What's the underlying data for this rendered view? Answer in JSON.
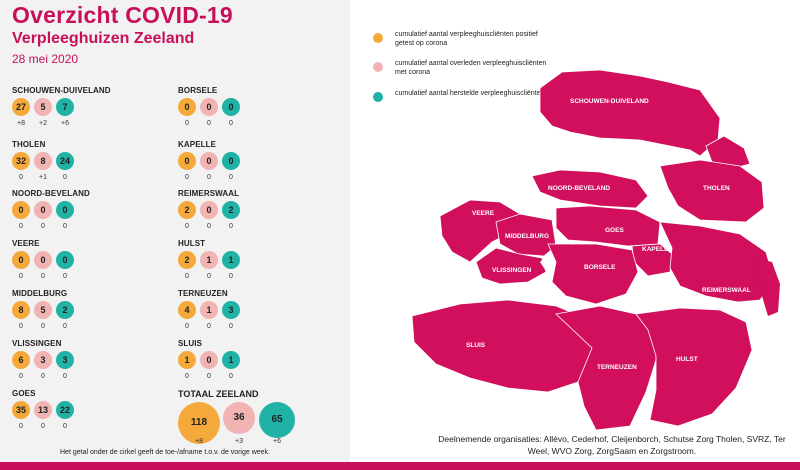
{
  "header": {
    "title": "Overzicht COVID-19",
    "subtitle": "Verpleeghuizen Zeeland",
    "date": "28 mei 2020"
  },
  "colors": {
    "accent": "#c8105a",
    "positive": "#f4a93a",
    "deceased": "#f2b3b3",
    "recovered": "#1fb2a5"
  },
  "regions": [
    {
      "name": "SCHOUWEN-DUIVELAND",
      "values": [
        "27",
        "5",
        "7"
      ],
      "deltas": [
        "+8",
        "+2",
        "+6"
      ]
    },
    {
      "name": "THOLEN",
      "values": [
        "32",
        "8",
        "24"
      ],
      "deltas": [
        "0",
        "+1",
        "0"
      ]
    },
    {
      "name": "NOORD-BEVELAND",
      "values": [
        "0",
        "0",
        "0"
      ],
      "deltas": [
        "0",
        "0",
        "0"
      ]
    },
    {
      "name": "VEERE",
      "values": [
        "0",
        "0",
        "0"
      ],
      "deltas": [
        "0",
        "0",
        "0"
      ]
    },
    {
      "name": "MIDDELBURG",
      "values": [
        "8",
        "5",
        "2"
      ],
      "deltas": [
        "0",
        "0",
        "0"
      ]
    },
    {
      "name": "VLISSINGEN",
      "values": [
        "6",
        "3",
        "3"
      ],
      "deltas": [
        "0",
        "0",
        "0"
      ]
    },
    {
      "name": "GOES",
      "values": [
        "35",
        "13",
        "22"
      ],
      "deltas": [
        "0",
        "0",
        "0"
      ]
    },
    {
      "name": "BORSELE",
      "values": [
        "0",
        "0",
        "0"
      ],
      "deltas": [
        "0",
        "0",
        "0"
      ]
    },
    {
      "name": "KAPELLE",
      "values": [
        "0",
        "0",
        "0"
      ],
      "deltas": [
        "0",
        "0",
        "0"
      ]
    },
    {
      "name": "REIMERSWAAL",
      "values": [
        "2",
        "0",
        "2"
      ],
      "deltas": [
        "0",
        "0",
        "0"
      ]
    },
    {
      "name": "HULST",
      "values": [
        "2",
        "1",
        "1"
      ],
      "deltas": [
        "0",
        "0",
        "0"
      ]
    },
    {
      "name": "TERNEUZEN",
      "values": [
        "4",
        "1",
        "3"
      ],
      "deltas": [
        "0",
        "0",
        "0"
      ]
    },
    {
      "name": "SLUIS",
      "values": [
        "1",
        "0",
        "1"
      ],
      "deltas": [
        "0",
        "0",
        "0"
      ]
    }
  ],
  "total": {
    "name": "TOTAAL ZEELAND",
    "values": [
      "118",
      "36",
      "65"
    ],
    "deltas": [
      "+8",
      "+3",
      "+6"
    ]
  },
  "footnote": "Het getal onder de cirkel geeft de toe-/afname t.o.v. de vorige week.",
  "legend": [
    "cumulatief aantal verpleeghuiscliënten positief getest op corona",
    "cumulatief aantal overleden verpleeghuiscliënten met corona",
    "cumulatief aantal herstelde verpleeghuiscliënten"
  ],
  "map_labels": {
    "schouwen": "SCHOUWEN-DUIVELAND",
    "noordbeveland": "NOORD-BEVELAND",
    "tholen": "THOLEN",
    "veere": "VEERE",
    "middelburg": "MIDDELBURG",
    "goes": "GOES",
    "kapelle": "KAPELLE",
    "vlissingen": "VLISSINGEN",
    "borsele": "BORSELE",
    "reimerswaal": "REIMERSWAAL",
    "sluis": "SLUIS",
    "terneuzen": "TERNEUZEN",
    "hulst": "HULST"
  },
  "organisations": "Deelnemende organisaties: Allévo, Cederhof, Cleijenborch, Schutse Zorg Tholen, SVRZ, Ter Weel, WVO Zorg, ZorgSaam en Zorgstroom."
}
